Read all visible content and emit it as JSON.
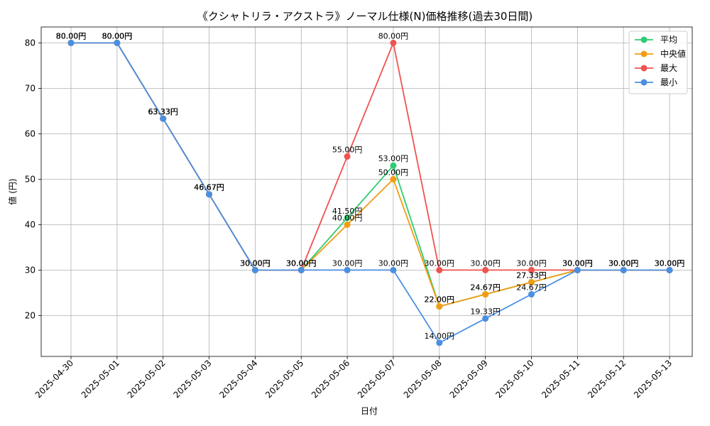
{
  "chart_data": {
    "type": "line",
    "title": "《クシャトリラ・アクストラ》ノーマル仕様(N)価格推移(過去30日間)",
    "xlabel": "日付",
    "ylabel": "値 (円)",
    "ylim": [
      11,
      83.5
    ],
    "yticks": [
      20,
      30,
      40,
      50,
      60,
      70,
      80
    ],
    "grid": true,
    "legend_position": "top-right",
    "value_suffix": "円",
    "x": [
      "2025-04-30",
      "2025-05-01",
      "2025-05-02",
      "2025-05-03",
      "2025-05-04",
      "2025-05-05",
      "2025-05-06",
      "2025-05-07",
      "2025-05-08",
      "2025-05-09",
      "2025-05-10",
      "2025-05-11",
      "2025-05-12",
      "2025-05-13"
    ],
    "series": [
      {
        "name": "平均",
        "color": "#2ecc71",
        "values": [
          80.0,
          80.0,
          63.33,
          46.67,
          30.0,
          30.0,
          41.5,
          53.0,
          22.0,
          24.67,
          27.33,
          30.0,
          30.0,
          30.0
        ]
      },
      {
        "name": "中央値",
        "color": "#f39c12",
        "values": [
          80.0,
          80.0,
          63.33,
          46.67,
          30.0,
          30.0,
          40.0,
          50.0,
          22.0,
          24.67,
          27.33,
          30.0,
          30.0,
          30.0
        ]
      },
      {
        "name": "最大",
        "color": "#ef5350",
        "values": [
          80.0,
          80.0,
          63.33,
          46.67,
          30.0,
          30.0,
          55.0,
          80.0,
          30.0,
          30.0,
          30.0,
          30.0,
          30.0,
          30.0
        ]
      },
      {
        "name": "最小",
        "color": "#4a90e2",
        "values": [
          80.0,
          80.0,
          63.33,
          46.67,
          30.0,
          30.0,
          30.0,
          30.0,
          14.0,
          19.33,
          24.67,
          30.0,
          30.0,
          30.0
        ]
      }
    ]
  }
}
